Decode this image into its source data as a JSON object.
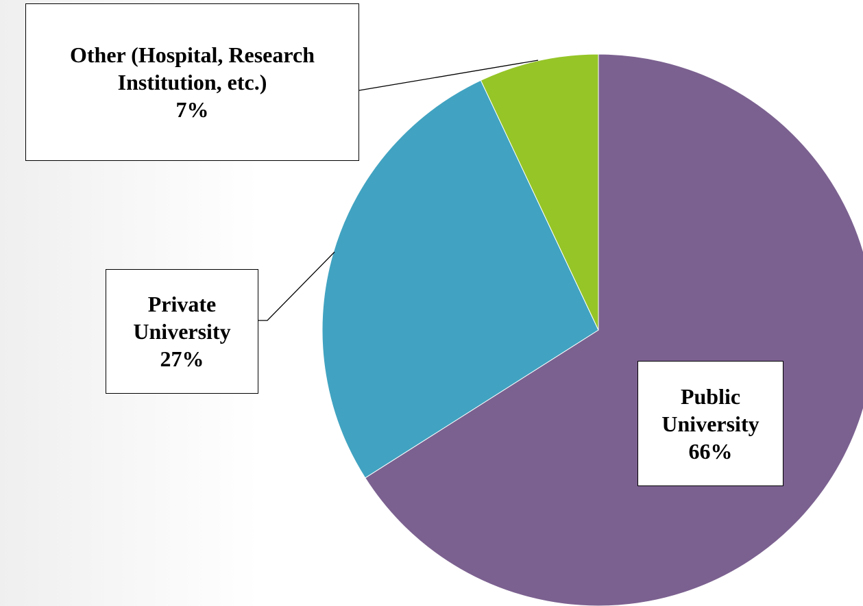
{
  "chart_data": {
    "type": "pie",
    "categories": [
      "Public University",
      "Private University",
      "Other (Hospital, Research Institution, etc.)"
    ],
    "values": [
      66,
      27,
      7
    ],
    "value_labels": [
      "66%",
      "27%",
      "7%"
    ],
    "colors": [
      "#7b6190",
      "#41a3c1",
      "#95c527"
    ]
  }
}
